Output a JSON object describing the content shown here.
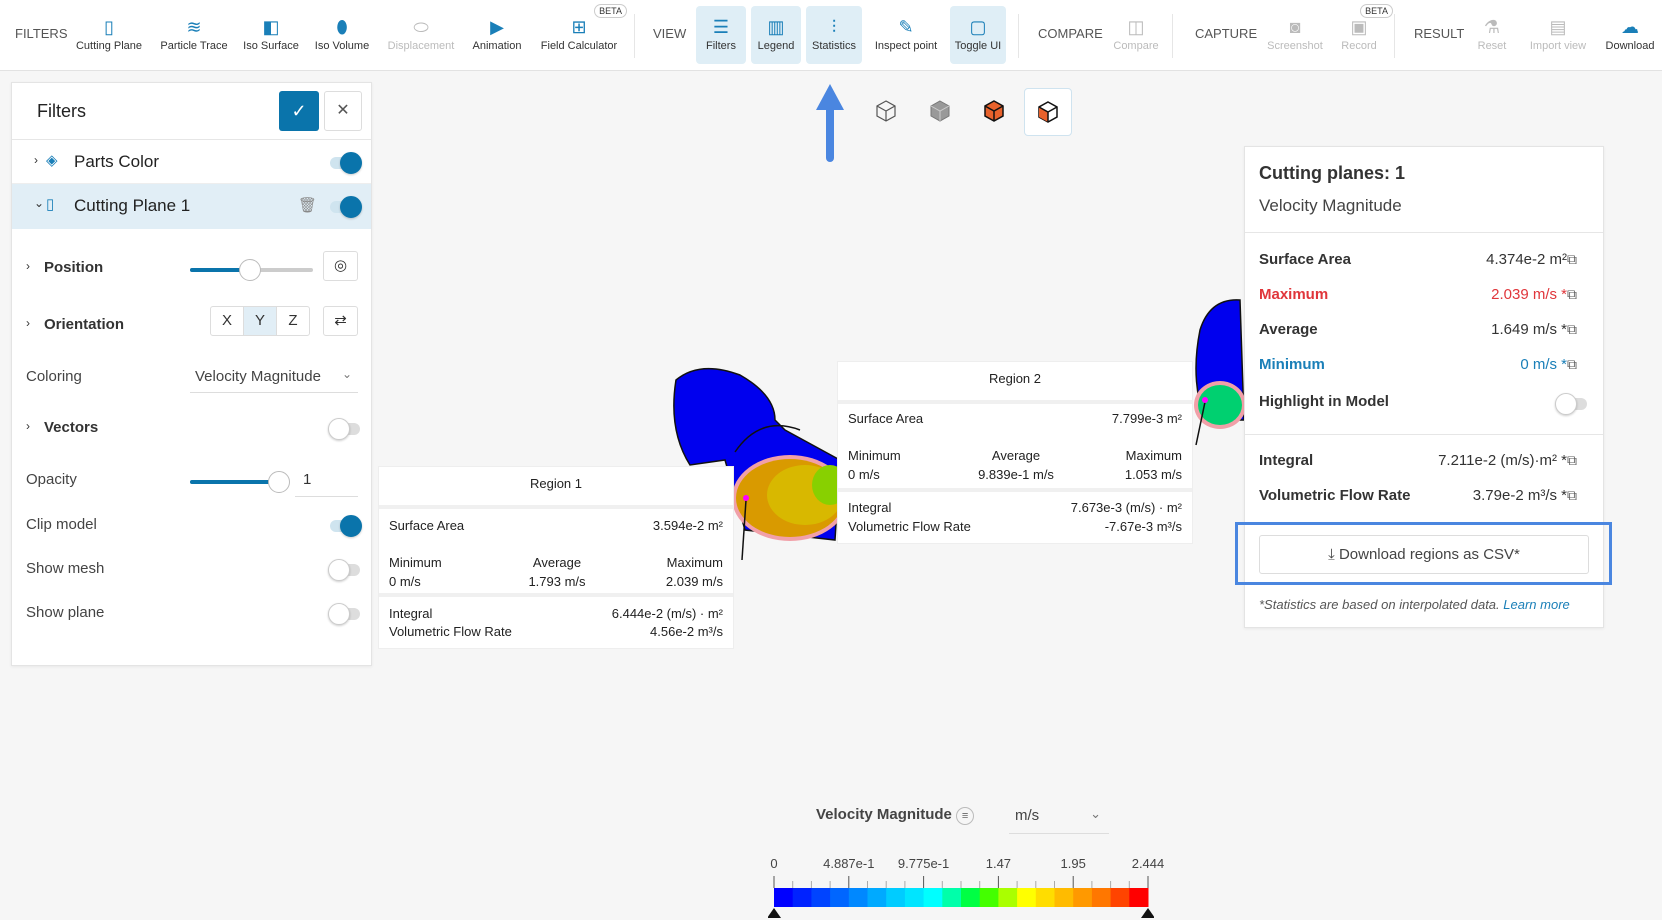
{
  "toolbar": {
    "filters_label": "FILTERS",
    "view_label": "VIEW",
    "compare_label": "COMPARE",
    "capture_label": "CAPTURE",
    "result_label": "RESULT",
    "beta": "BETA",
    "filters": [
      {
        "label": "Cutting Plane",
        "icon": "cutting-plane-icon"
      },
      {
        "label": "Particle Trace",
        "icon": "particle-trace-icon"
      },
      {
        "label": "Iso Surface",
        "icon": "iso-surface-icon"
      },
      {
        "label": "Iso Volume",
        "icon": "iso-volume-icon"
      },
      {
        "label": "Displacement",
        "icon": "displacement-icon",
        "disabled": true
      },
      {
        "label": "Animation",
        "icon": "play-icon"
      },
      {
        "label": "Field Calculator",
        "icon": "calculator-icon",
        "badge": "BETA"
      }
    ],
    "view": [
      {
        "label": "Filters",
        "active": true
      },
      {
        "label": "Legend",
        "active": true
      },
      {
        "label": "Statistics",
        "active": true
      },
      {
        "label": "Inspect point",
        "active": false
      },
      {
        "label": "Toggle UI",
        "active": true
      }
    ],
    "compare": "Compare",
    "screenshot": "Screenshot",
    "record": "Record",
    "reset": "Reset",
    "import_view": "Import view",
    "download": "Download"
  },
  "filters_panel": {
    "title": "Filters",
    "parts_color": {
      "label": "Parts Color",
      "enabled": true
    },
    "cutting_plane": {
      "label": "Cutting Plane 1",
      "enabled": true
    },
    "position": {
      "label": "Position",
      "value_fraction": 0.5
    },
    "orientation": {
      "label": "Orientation",
      "options": [
        "X",
        "Y",
        "Z"
      ],
      "selected": "Y"
    },
    "coloring": {
      "label": "Coloring",
      "value": "Velocity Magnitude"
    },
    "vectors": {
      "label": "Vectors",
      "enabled": false
    },
    "opacity": {
      "label": "Opacity",
      "value": "1",
      "fraction": 1
    },
    "clip_model": {
      "label": "Clip model",
      "enabled": true
    },
    "show_mesh": {
      "label": "Show mesh",
      "enabled": false
    },
    "show_plane": {
      "label": "Show plane",
      "enabled": false
    }
  },
  "stats": {
    "title": "Cutting planes: 1",
    "subtitle": "Velocity Magnitude",
    "surface_area": {
      "label": "Surface Area",
      "value": "4.374e-2 m²"
    },
    "maximum": {
      "label": "Maximum",
      "value": "2.039 m/s *"
    },
    "average": {
      "label": "Average",
      "value": "1.649 m/s *"
    },
    "minimum": {
      "label": "Minimum",
      "value": "0 m/s *"
    },
    "highlight": {
      "label": "Highlight in Model",
      "enabled": false
    },
    "integral": {
      "label": "Integral",
      "value": "7.211e-2 (m/s)·m² *"
    },
    "flow_rate": {
      "label": "Volumetric Flow Rate",
      "value": "3.79e-2 m³/s *"
    },
    "download": "Download regions as CSV*",
    "footnote": "*Statistics are based on interpolated data.",
    "learn_more": "Learn more",
    "colors": {
      "max": "#e0363b",
      "min": "#1a7fb8",
      "highlight_box": "#4a86e0"
    }
  },
  "regions": [
    {
      "title": "Region 1",
      "surface_area_label": "Surface Area",
      "surface_area": "3.594e-2 m²",
      "min_label": "Minimum",
      "avg_label": "Average",
      "max_label": "Maximum",
      "min": "0 m/s",
      "avg": "1.793 m/s",
      "max": "2.039 m/s",
      "integral_label": "Integral",
      "integral": "6.444e-2 (m/s) · m²",
      "flow_label": "Volumetric Flow Rate",
      "flow": "4.56e-2 m³/s"
    },
    {
      "title": "Region 2",
      "surface_area_label": "Surface Area",
      "surface_area": "7.799e-3 m²",
      "min_label": "Minimum",
      "avg_label": "Average",
      "max_label": "Maximum",
      "min": "0 m/s",
      "avg": "9.839e-1 m/s",
      "max": "1.053 m/s",
      "integral_label": "Integral",
      "integral": "7.673e-3 (m/s) · m²",
      "flow_label": "Volumetric Flow Rate",
      "flow": "-7.67e-3 m³/s"
    }
  ],
  "legend": {
    "title": "Velocity Magnitude",
    "unit": "m/s",
    "ticks": [
      "0",
      "4.887e-1",
      "9.775e-1",
      "1.47",
      "1.95",
      "2.444"
    ],
    "colors": [
      "#0000ff",
      "#0022ff",
      "#0044ff",
      "#0066ff",
      "#0088ff",
      "#00aaff",
      "#00ccff",
      "#00e5ff",
      "#00ffff",
      "#00ffaa",
      "#00ff44",
      "#44ff00",
      "#aaff00",
      "#ffff00",
      "#ffdd00",
      "#ffbb00",
      "#ff9900",
      "#ff7700",
      "#ff4400",
      "#ff0000"
    ]
  },
  "view_modes": [
    "wireframe-cube-icon",
    "solid-cube-icon",
    "surface-edges-cube-icon",
    "surface-wire-cube-icon"
  ]
}
